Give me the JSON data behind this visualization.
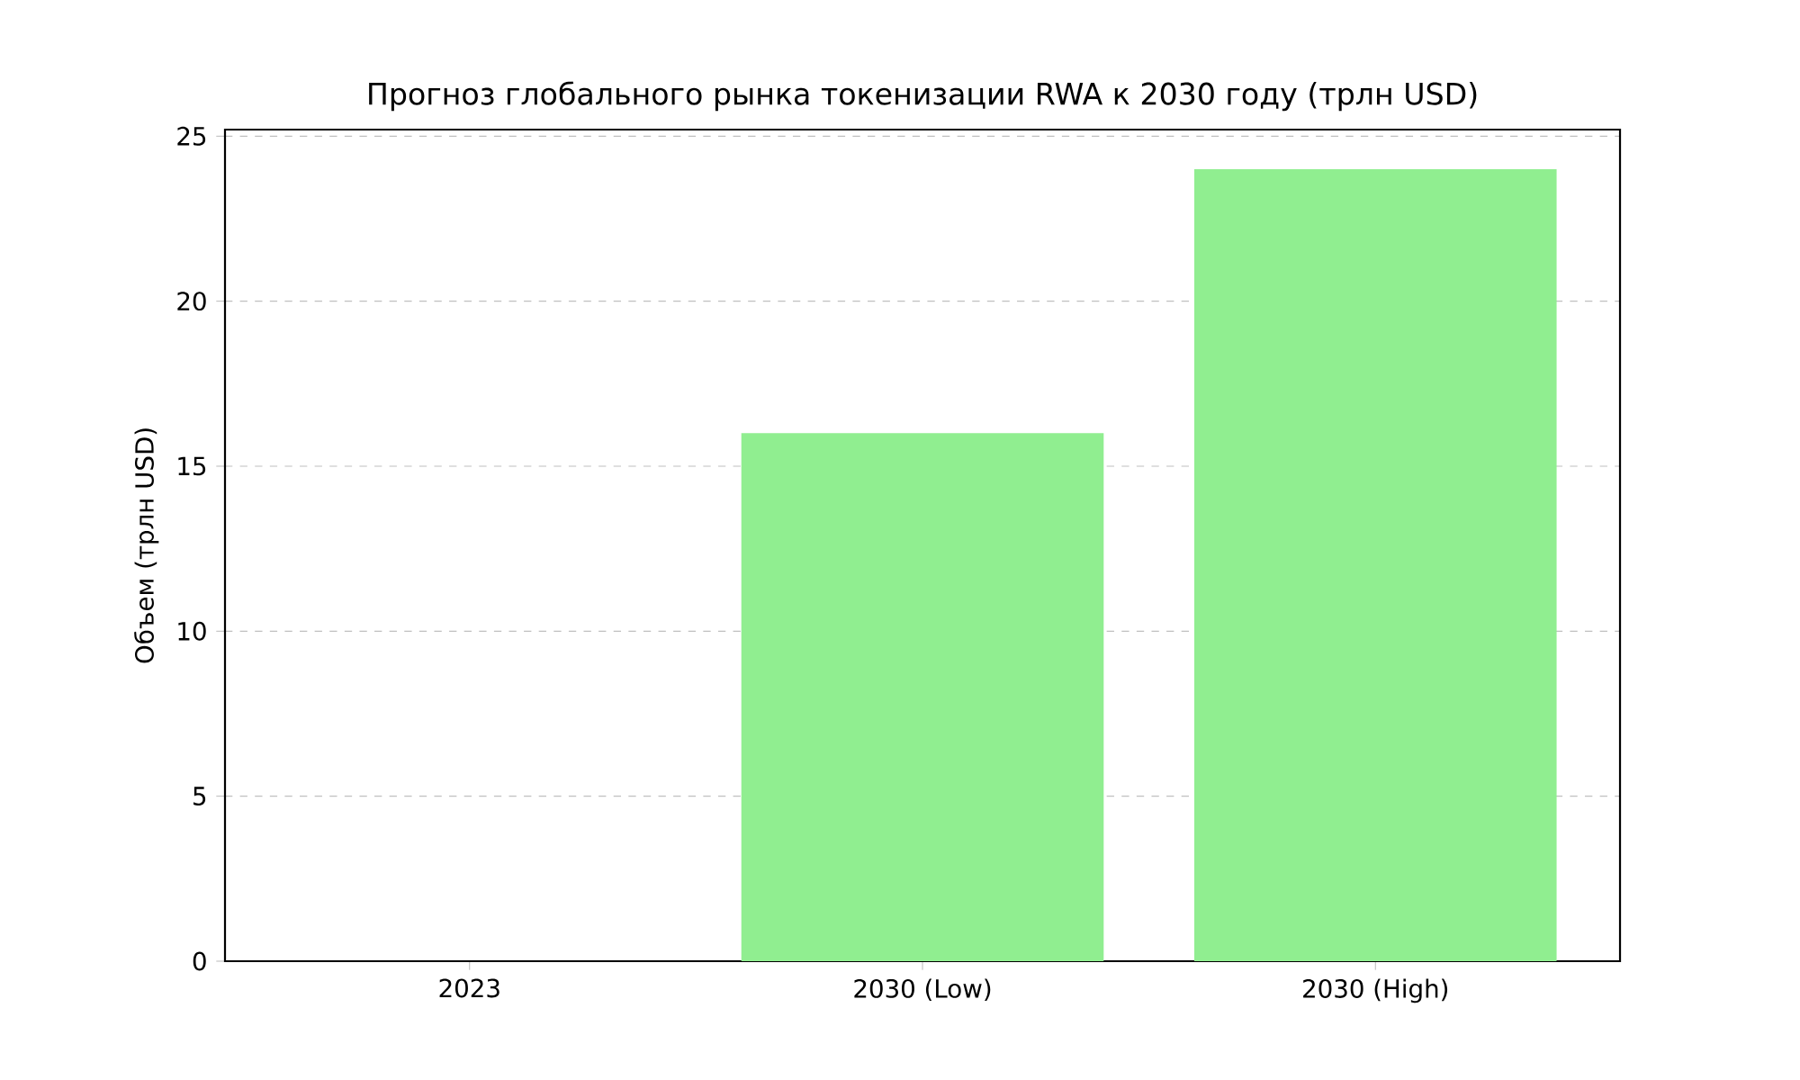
{
  "chart_data": {
    "type": "bar",
    "title": "Прогноз глобального рынка токенизации RWA к 2030 году (трлн USD)",
    "ylabel": "Объем (трлн USD)",
    "categories": [
      "2023",
      "2030 (Low)",
      "2030 (High)"
    ],
    "values": [
      0,
      16,
      24
    ],
    "color": "#90ee90",
    "ylim": [
      0,
      25.2
    ],
    "yticks": [
      0,
      5,
      10,
      15,
      20,
      25
    ],
    "grid": "y"
  }
}
